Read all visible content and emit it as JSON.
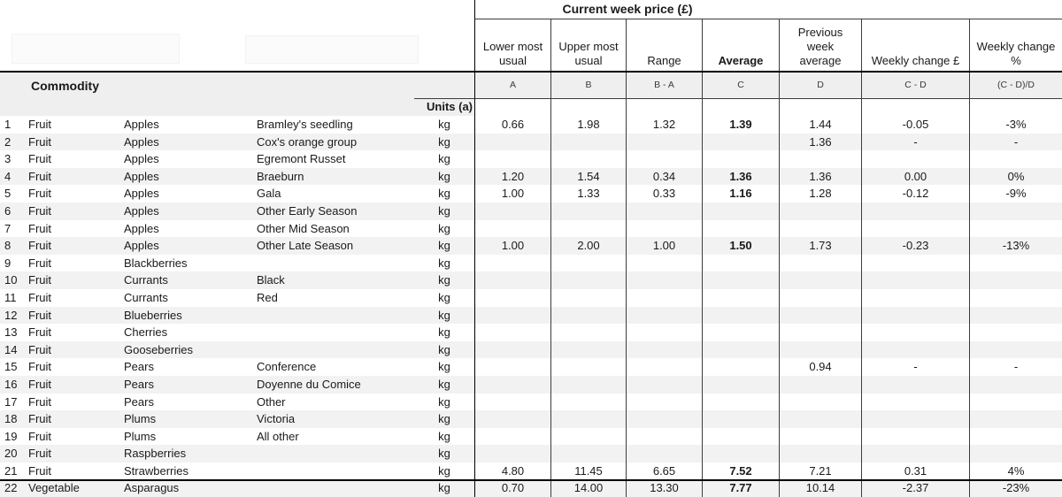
{
  "table": {
    "group_title": "Current week price (£)",
    "commodity_label": "Commodity",
    "units_label": "Units (a)",
    "price_columns": [
      {
        "label": "Lower most\nusual",
        "formula": "A"
      },
      {
        "label": "Upper most\nusual",
        "formula": "B"
      },
      {
        "label": "Range",
        "formula": "B - A"
      },
      {
        "label": "Average",
        "formula": "C"
      },
      {
        "label": "Previous\nweek\naverage",
        "formula": "D"
      },
      {
        "label": "Weekly change £",
        "formula": "C - D"
      },
      {
        "label": "Weekly change\n%",
        "formula": "(C - D)/D"
      }
    ],
    "rows": [
      {
        "num": "1",
        "category": "Fruit",
        "type": "Apples",
        "variety": "Bramley's seedling",
        "units": "kg",
        "lower": "0.66",
        "upper": "1.98",
        "range": "1.32",
        "average": "1.39",
        "prev_avg": "1.44",
        "change_gbp": "-0.05",
        "change_pct": "-3%"
      },
      {
        "num": "2",
        "category": "Fruit",
        "type": "Apples",
        "variety": "Cox's orange group",
        "units": "kg",
        "lower": "",
        "upper": "",
        "range": "",
        "average": "",
        "prev_avg": "1.36",
        "change_gbp": "-",
        "change_pct": "-"
      },
      {
        "num": "3",
        "category": "Fruit",
        "type": "Apples",
        "variety": "Egremont Russet",
        "units": "kg",
        "lower": "",
        "upper": "",
        "range": "",
        "average": "",
        "prev_avg": "",
        "change_gbp": "",
        "change_pct": ""
      },
      {
        "num": "4",
        "category": "Fruit",
        "type": "Apples",
        "variety": "Braeburn",
        "units": "kg",
        "lower": "1.20",
        "upper": "1.54",
        "range": "0.34",
        "average": "1.36",
        "prev_avg": "1.36",
        "change_gbp": "0.00",
        "change_pct": "0%"
      },
      {
        "num": "5",
        "category": "Fruit",
        "type": "Apples",
        "variety": "Gala",
        "units": "kg",
        "lower": "1.00",
        "upper": "1.33",
        "range": "0.33",
        "average": "1.16",
        "prev_avg": "1.28",
        "change_gbp": "-0.12",
        "change_pct": "-9%"
      },
      {
        "num": "6",
        "category": "Fruit",
        "type": "Apples",
        "variety": "Other Early Season",
        "units": "kg",
        "lower": "",
        "upper": "",
        "range": "",
        "average": "",
        "prev_avg": "",
        "change_gbp": "",
        "change_pct": ""
      },
      {
        "num": "7",
        "category": "Fruit",
        "type": "Apples",
        "variety": "Other Mid Season",
        "units": "kg",
        "lower": "",
        "upper": "",
        "range": "",
        "average": "",
        "prev_avg": "",
        "change_gbp": "",
        "change_pct": ""
      },
      {
        "num": "8",
        "category": "Fruit",
        "type": "Apples",
        "variety": "Other Late Season",
        "units": "kg",
        "lower": "1.00",
        "upper": "2.00",
        "range": "1.00",
        "average": "1.50",
        "prev_avg": "1.73",
        "change_gbp": "-0.23",
        "change_pct": "-13%"
      },
      {
        "num": "9",
        "category": "Fruit",
        "type": "Blackberries",
        "variety": "",
        "units": "kg",
        "lower": "",
        "upper": "",
        "range": "",
        "average": "",
        "prev_avg": "",
        "change_gbp": "",
        "change_pct": ""
      },
      {
        "num": "10",
        "category": "Fruit",
        "type": "Currants",
        "variety": "Black",
        "units": "kg",
        "lower": "",
        "upper": "",
        "range": "",
        "average": "",
        "prev_avg": "",
        "change_gbp": "",
        "change_pct": ""
      },
      {
        "num": "11",
        "category": "Fruit",
        "type": "Currants",
        "variety": "Red",
        "units": "kg",
        "lower": "",
        "upper": "",
        "range": "",
        "average": "",
        "prev_avg": "",
        "change_gbp": "",
        "change_pct": ""
      },
      {
        "num": "12",
        "category": "Fruit",
        "type": "Blueberries",
        "variety": "",
        "units": "kg",
        "lower": "",
        "upper": "",
        "range": "",
        "average": "",
        "prev_avg": "",
        "change_gbp": "",
        "change_pct": ""
      },
      {
        "num": "13",
        "category": "Fruit",
        "type": "Cherries",
        "variety": "",
        "units": "kg",
        "lower": "",
        "upper": "",
        "range": "",
        "average": "",
        "prev_avg": "",
        "change_gbp": "",
        "change_pct": ""
      },
      {
        "num": "14",
        "category": "Fruit",
        "type": "Gooseberries",
        "variety": "",
        "units": "kg",
        "lower": "",
        "upper": "",
        "range": "",
        "average": "",
        "prev_avg": "",
        "change_gbp": "",
        "change_pct": ""
      },
      {
        "num": "15",
        "category": "Fruit",
        "type": "Pears",
        "variety": "Conference",
        "units": "kg",
        "lower": "",
        "upper": "",
        "range": "",
        "average": "",
        "prev_avg": "0.94",
        "change_gbp": "-",
        "change_pct": "-"
      },
      {
        "num": "16",
        "category": "Fruit",
        "type": "Pears",
        "variety": "Doyenne du Comice",
        "units": "kg",
        "lower": "",
        "upper": "",
        "range": "",
        "average": "",
        "prev_avg": "",
        "change_gbp": "",
        "change_pct": ""
      },
      {
        "num": "17",
        "category": "Fruit",
        "type": "Pears",
        "variety": "Other",
        "units": "kg",
        "lower": "",
        "upper": "",
        "range": "",
        "average": "",
        "prev_avg": "",
        "change_gbp": "",
        "change_pct": ""
      },
      {
        "num": "18",
        "category": "Fruit",
        "type": "Plums",
        "variety": "Victoria",
        "units": "kg",
        "lower": "",
        "upper": "",
        "range": "",
        "average": "",
        "prev_avg": "",
        "change_gbp": "",
        "change_pct": ""
      },
      {
        "num": "19",
        "category": "Fruit",
        "type": "Plums",
        "variety": "All other",
        "units": "kg",
        "lower": "",
        "upper": "",
        "range": "",
        "average": "",
        "prev_avg": "",
        "change_gbp": "",
        "change_pct": ""
      },
      {
        "num": "20",
        "category": "Fruit",
        "type": "Raspberries",
        "variety": "",
        "units": "kg",
        "lower": "",
        "upper": "",
        "range": "",
        "average": "",
        "prev_avg": "",
        "change_gbp": "",
        "change_pct": ""
      },
      {
        "num": "21",
        "category": "Fruit",
        "type": "Strawberries",
        "variety": "",
        "units": "kg",
        "lower": "4.80",
        "upper": "11.45",
        "range": "6.65",
        "average": "7.52",
        "prev_avg": "7.21",
        "change_gbp": "0.31",
        "change_pct": "4%"
      },
      {
        "num": "22",
        "category": "Vegetable",
        "type": "Asparagus",
        "variety": "",
        "units": "kg",
        "lower": "0.70",
        "upper": "14.00",
        "range": "13.30",
        "average": "7.77",
        "prev_avg": "10.14",
        "change_gbp": "-2.37",
        "change_pct": "-23%",
        "divider_before": true,
        "last": true
      }
    ]
  },
  "colors": {
    "stripe": "#f2f2f2",
    "header_band": "#efefef",
    "border": "#3c3c3c",
    "thick_border": "#000000"
  }
}
